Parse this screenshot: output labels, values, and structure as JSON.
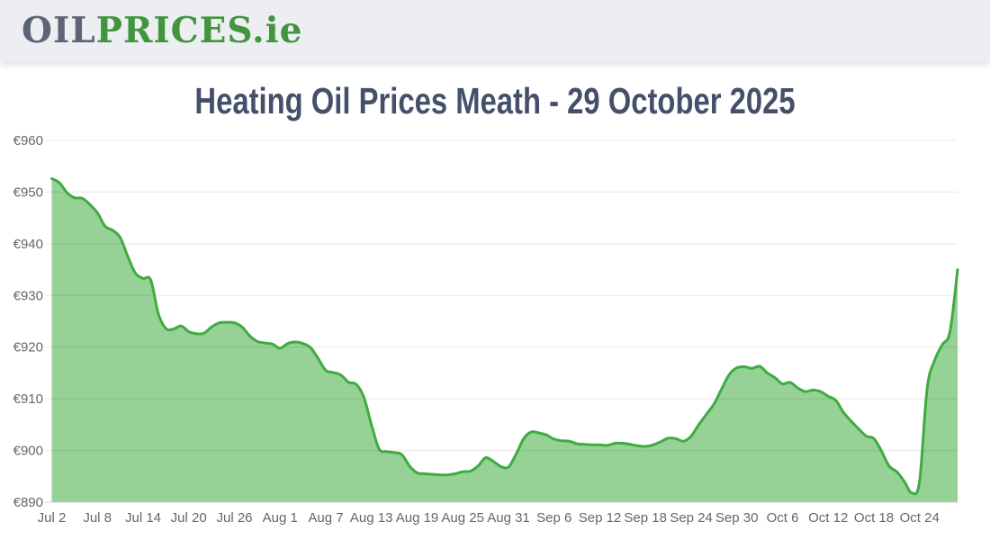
{
  "header": {
    "logo": {
      "oil": "OIL",
      "prices": "PRICES",
      "domain": ".ie"
    }
  },
  "page": {
    "title": "Heating Oil Prices Meath - 29 October 2025"
  },
  "colors": {
    "header_bg": "#eceef2",
    "logo_gray": "#5b6577",
    "logo_green": "#41953c",
    "title_text": "#44506a",
    "line_green": "#3fab40",
    "area_fill": "rgba(63,171,64,0.55)",
    "gridline": "rgba(0,0,0,0.09)",
    "axis_line": "#cfcfcf",
    "axis_label": "#666666",
    "plot_bg": "#ffffff"
  },
  "chart_data": {
    "type": "area",
    "title": "Heating Oil Prices Meath - 29 October 2025",
    "xlabel": "",
    "ylabel": "",
    "grid": true,
    "legend": false,
    "ylim": [
      890,
      960
    ],
    "y_tick_values": [
      890,
      900,
      910,
      920,
      930,
      940,
      950,
      960
    ],
    "y_tick_labels": [
      "€890",
      "€900",
      "€910",
      "€920",
      "€930",
      "€940",
      "€950",
      "€960"
    ],
    "x_tick_labels": [
      "Jul 2",
      "Jul 8",
      "Jul 14",
      "Jul 20",
      "Jul 26",
      "Aug 1",
      "Aug 7",
      "Aug 13",
      "Aug 19",
      "Aug 25",
      "Aug 31",
      "Sep 6",
      "Sep 12",
      "Sep 18",
      "Sep 24",
      "Sep 30",
      "Oct 6",
      "Oct 12",
      "Oct 18",
      "Oct 24"
    ],
    "x_tick_indices": [
      0,
      6,
      12,
      18,
      24,
      30,
      36,
      42,
      48,
      54,
      60,
      66,
      72,
      78,
      84,
      90,
      96,
      102,
      108,
      114
    ],
    "dates": [
      "Jul 2",
      "Jul 3",
      "Jul 4",
      "Jul 5",
      "Jul 6",
      "Jul 7",
      "Jul 8",
      "Jul 9",
      "Jul 10",
      "Jul 11",
      "Jul 12",
      "Jul 13",
      "Jul 14",
      "Jul 15",
      "Jul 16",
      "Jul 17",
      "Jul 18",
      "Jul 19",
      "Jul 20",
      "Jul 21",
      "Jul 22",
      "Jul 23",
      "Jul 24",
      "Jul 25",
      "Jul 26",
      "Jul 27",
      "Jul 28",
      "Jul 29",
      "Jul 30",
      "Jul 31",
      "Aug 1",
      "Aug 2",
      "Aug 3",
      "Aug 4",
      "Aug 5",
      "Aug 6",
      "Aug 7",
      "Aug 8",
      "Aug 9",
      "Aug 10",
      "Aug 11",
      "Aug 12",
      "Aug 13",
      "Aug 14",
      "Aug 15",
      "Aug 16",
      "Aug 17",
      "Aug 18",
      "Aug 19",
      "Aug 20",
      "Aug 21",
      "Aug 22",
      "Aug 23",
      "Aug 24",
      "Aug 25",
      "Aug 26",
      "Aug 27",
      "Aug 28",
      "Aug 29",
      "Aug 30",
      "Aug 31",
      "Sep 1",
      "Sep 2",
      "Sep 3",
      "Sep 4",
      "Sep 5",
      "Sep 6",
      "Sep 7",
      "Sep 8",
      "Sep 9",
      "Sep 10",
      "Sep 11",
      "Sep 12",
      "Sep 13",
      "Sep 14",
      "Sep 15",
      "Sep 16",
      "Sep 17",
      "Sep 18",
      "Sep 19",
      "Sep 20",
      "Sep 21",
      "Sep 22",
      "Sep 23",
      "Sep 24",
      "Sep 25",
      "Sep 26",
      "Sep 27",
      "Sep 28",
      "Sep 29",
      "Sep 30",
      "Oct 1",
      "Oct 2",
      "Oct 3",
      "Oct 4",
      "Oct 5",
      "Oct 6",
      "Oct 7",
      "Oct 8",
      "Oct 9",
      "Oct 10",
      "Oct 11",
      "Oct 12",
      "Oct 13",
      "Oct 14",
      "Oct 15",
      "Oct 16",
      "Oct 17",
      "Oct 18",
      "Oct 19",
      "Oct 20",
      "Oct 21",
      "Oct 22",
      "Oct 23",
      "Oct 24",
      "Oct 25",
      "Oct 26",
      "Oct 27",
      "Oct 28",
      "Oct 29"
    ],
    "values": [
      952.6,
      951.8,
      949.9,
      948.9,
      948.8,
      947.6,
      946.0,
      943.4,
      942.6,
      941.2,
      937.5,
      934.3,
      933.3,
      933.0,
      926.5,
      923.6,
      923.5,
      924.1,
      923.0,
      922.6,
      922.7,
      923.9,
      924.7,
      924.8,
      924.7,
      923.9,
      922.2,
      921.1,
      920.8,
      920.6,
      919.8,
      920.7,
      921.0,
      920.7,
      919.9,
      917.8,
      915.5,
      915.1,
      914.6,
      913.2,
      912.8,
      910.3,
      905.0,
      900.3,
      899.8,
      899.6,
      899.2,
      897.0,
      895.7,
      895.5,
      895.4,
      895.3,
      895.3,
      895.5,
      895.9,
      896.0,
      897.0,
      898.6,
      897.9,
      896.9,
      896.8,
      899.3,
      902.3,
      903.6,
      903.4,
      903.0,
      902.2,
      901.9,
      901.8,
      901.3,
      901.2,
      901.1,
      901.1,
      901.0,
      901.4,
      901.4,
      901.2,
      900.9,
      900.8,
      901.1,
      901.7,
      902.4,
      902.3,
      901.8,
      902.8,
      905.0,
      907.0,
      909.0,
      911.9,
      914.7,
      916.0,
      916.2,
      915.9,
      916.3,
      915.0,
      914.1,
      912.9,
      913.2,
      912.1,
      911.4,
      911.7,
      911.4,
      910.5,
      909.7,
      907.4,
      905.7,
      904.2,
      902.8,
      902.3,
      899.9,
      897.0,
      895.9,
      894.0,
      891.8,
      894.0,
      912.0,
      917.5,
      920.5,
      923.0,
      935.0
    ]
  }
}
